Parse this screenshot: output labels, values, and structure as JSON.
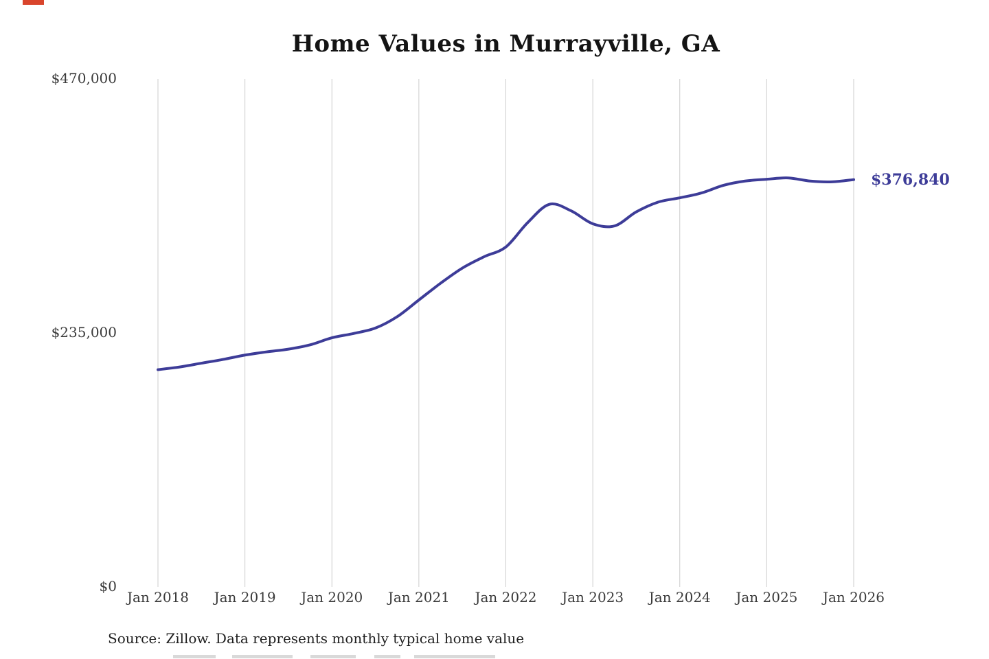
{
  "page": {
    "title": "Home Values in Murrayville, GA",
    "latest_value_label": "$376,840",
    "source_note": "Source: Zillow. Data represents monthly typical home value"
  },
  "chart_data": {
    "type": "line",
    "title": "Home Values in Murrayville, GA",
    "series": [
      {
        "name": "Monthly typical home value",
        "x": [
          2018.0,
          2018.25,
          2018.5,
          2018.75,
          2019.0,
          2019.25,
          2019.5,
          2019.75,
          2020.0,
          2020.25,
          2020.5,
          2020.75,
          2021.0,
          2021.25,
          2021.5,
          2021.75,
          2022.0,
          2022.25,
          2022.5,
          2022.75,
          2023.0,
          2023.25,
          2023.5,
          2023.75,
          2024.0,
          2024.25,
          2024.5,
          2024.75,
          2025.0,
          2025.25,
          2025.5,
          2025.75,
          2026.0
        ],
        "values": [
          201000,
          203500,
          207000,
          210500,
          214500,
          217500,
          220000,
          224000,
          230500,
          234500,
          239500,
          250000,
          265500,
          281000,
          295000,
          305500,
          314500,
          337000,
          354000,
          348000,
          336000,
          334000,
          347000,
          356000,
          360000,
          364500,
          371500,
          375500,
          377200,
          378400,
          375500,
          374800,
          376840
        ]
      }
    ],
    "x_ticks": [
      2018,
      2019,
      2020,
      2021,
      2022,
      2023,
      2024,
      2025,
      2026
    ],
    "x_tick_labels": [
      "Jan 2018",
      "Jan 2019",
      "Jan 2020",
      "Jan 2021",
      "Jan 2022",
      "Jan 2023",
      "Jan 2024",
      "Jan 2025",
      "Jan 2026"
    ],
    "y_ticks": [
      0,
      235000,
      470000
    ],
    "y_tick_labels": [
      "$0",
      "$235,000",
      "$470,000"
    ],
    "xlim": [
      2018,
      2026
    ],
    "ylim": [
      0,
      470000
    ],
    "grid": "vertical-only",
    "legend": "none",
    "line_color": "#3d3c98",
    "grid_color": "#cccccc",
    "annotation": {
      "text": "$376,840",
      "x": 2026,
      "y": 376840
    },
    "source": "Source: Zillow. Data represents monthly typical home value"
  }
}
